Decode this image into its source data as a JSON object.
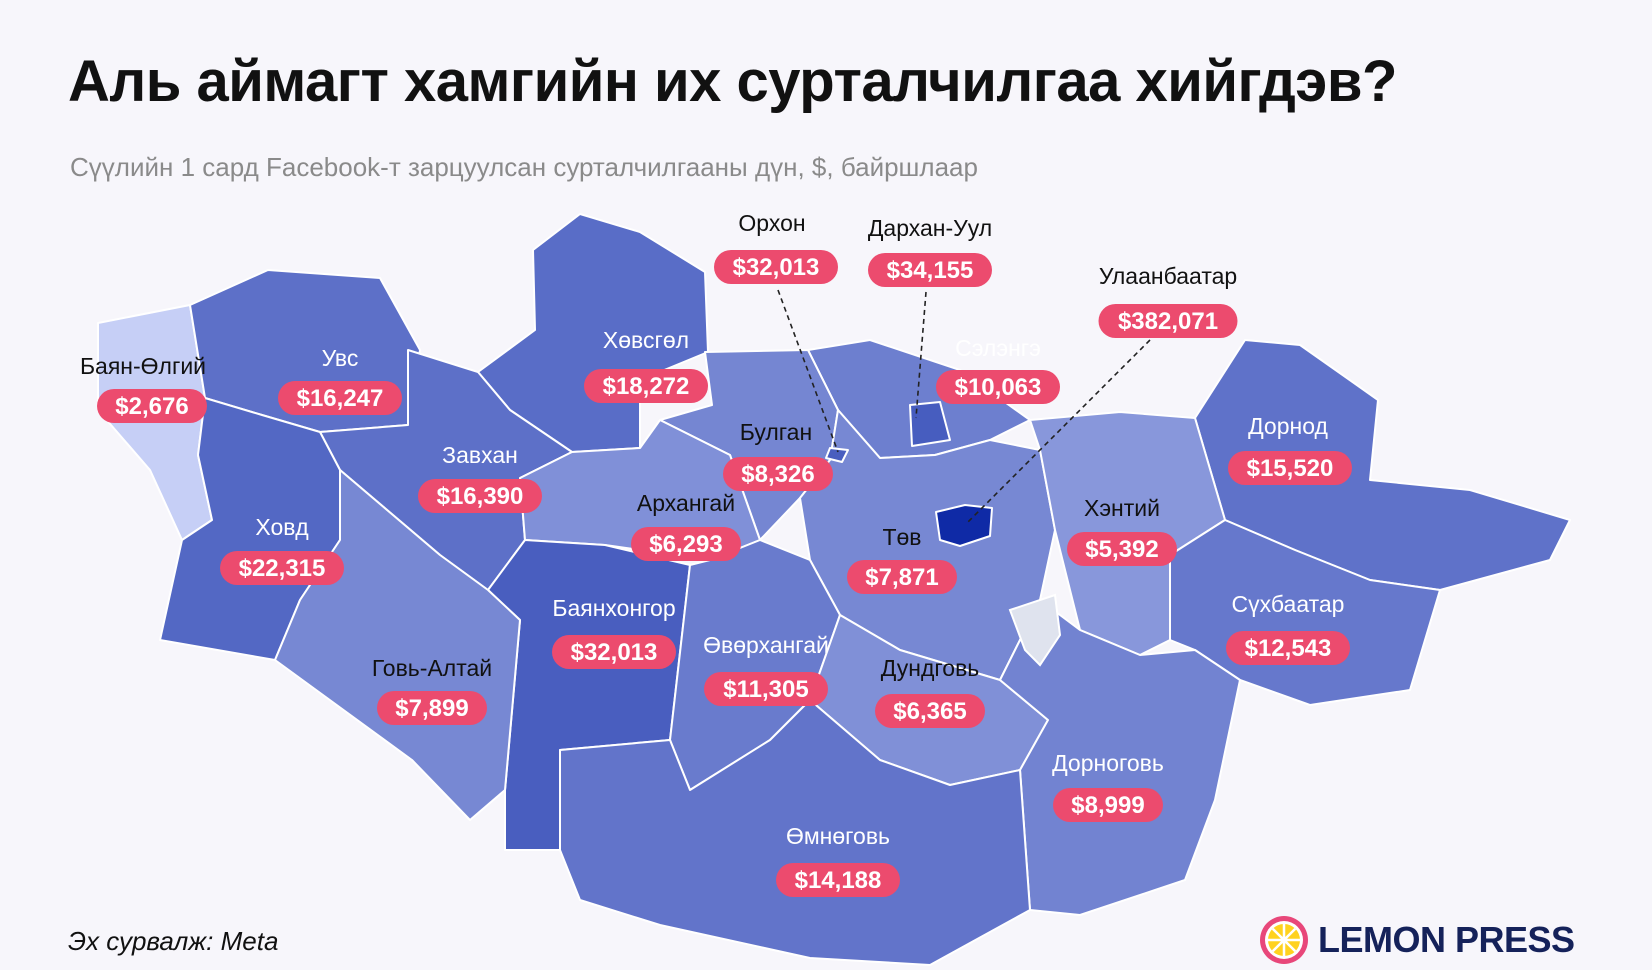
{
  "header": {
    "title": "Аль аймагт хамгийн их сурталчилгаа хийгдэв?",
    "subtitle": "Сүүлийн 1 сард Facebook-т зарцуулсан сурталчилгааны дүн, $, байршлаар"
  },
  "footer": {
    "source": "Эх сурвалж: Meta",
    "logo_text": "LEMON PRESS"
  },
  "colors": {
    "background": "#f7f6fb",
    "pill": "#ec4b6e",
    "pill_text": "#ffffff",
    "scale_low": "#c6cff6",
    "scale_high": "#0f2aa6",
    "leader_line": "#222222",
    "logo_yellow": "#ffd21f",
    "logo_ring": "#e8477a"
  },
  "map": {
    "regions": [
      {
        "id": "bayan-olgii",
        "name": "Баян-Өлгий",
        "value": "$2,676",
        "amount": 2676
      },
      {
        "id": "uvs",
        "name": "Увс",
        "value": "$16,247",
        "amount": 16247
      },
      {
        "id": "khovsgol",
        "name": "Хөвсгөл",
        "value": "$18,272",
        "amount": 18272
      },
      {
        "id": "orkhon",
        "name": "Орхон",
        "value": "$32,013",
        "amount": 32013
      },
      {
        "id": "darkhan-uul",
        "name": "Дархан-Уул",
        "value": "$34,155",
        "amount": 34155
      },
      {
        "id": "ulaanbaatar",
        "name": "Улаанбаатар",
        "value": "$382,071",
        "amount": 382071
      },
      {
        "id": "selenge",
        "name": "Сэлэнгэ",
        "value": "$10,063",
        "amount": 10063
      },
      {
        "id": "dornod",
        "name": "Дорнод",
        "value": "$15,520",
        "amount": 15520
      },
      {
        "id": "bulgan",
        "name": "Булган",
        "value": "$8,326",
        "amount": 8326
      },
      {
        "id": "zavkhan",
        "name": "Завхан",
        "value": "$16,390",
        "amount": 16390
      },
      {
        "id": "arkhangai",
        "name": "Архангай",
        "value": "$6,293",
        "amount": 6293
      },
      {
        "id": "khovd",
        "name": "Ховд",
        "value": "$22,315",
        "amount": 22315
      },
      {
        "id": "tov",
        "name": "Төв",
        "value": "$7,871",
        "amount": 7871
      },
      {
        "id": "khentii",
        "name": "Хэнтий",
        "value": "$5,392",
        "amount": 5392
      },
      {
        "id": "sukhbaatar",
        "name": "Сүхбаатар",
        "value": "$12,543",
        "amount": 12543
      },
      {
        "id": "bayankhongor",
        "name": "Баянхонгор",
        "value": "$32,013",
        "amount": 32013
      },
      {
        "id": "ovorkhangai",
        "name": "Өвөрхангай",
        "value": "$11,305",
        "amount": 11305
      },
      {
        "id": "govi-altai",
        "name": "Говь-Алтай",
        "value": "$7,899",
        "amount": 7899
      },
      {
        "id": "dundgovi",
        "name": "Дундговь",
        "value": "$6,365",
        "amount": 6365
      },
      {
        "id": "dornogovi",
        "name": "Дорноговь",
        "value": "$8,999",
        "amount": 8999
      },
      {
        "id": "omnogovi",
        "name": "Өмнөговь",
        "value": "$14,188",
        "amount": 14188
      }
    ]
  }
}
